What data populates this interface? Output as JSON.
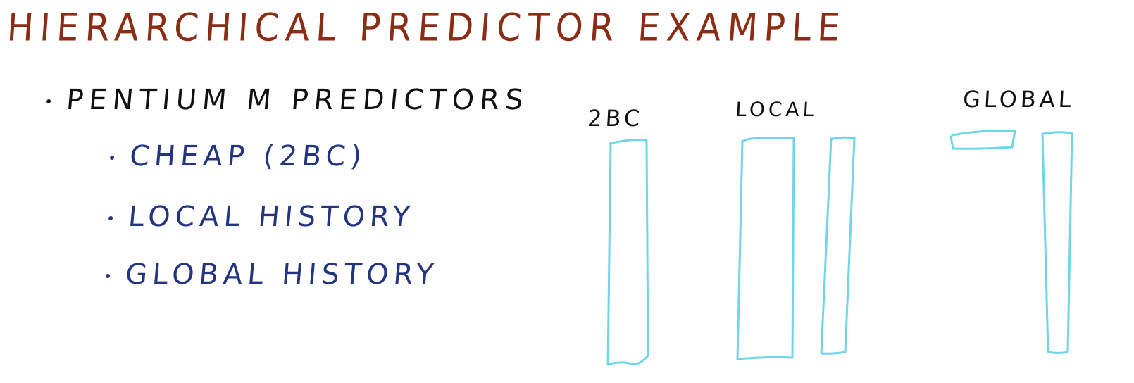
{
  "title": "Hierarchical Predictor Example",
  "bullets": {
    "main": "Pentium M Predictors",
    "items": [
      "Cheap (2BC)",
      "Local History",
      "Global History"
    ]
  },
  "diagram": {
    "labels": {
      "twobc": "2BC",
      "local": "Local",
      "global": "Global"
    }
  },
  "colors": {
    "title": "#8a2d14",
    "main_text": "#111111",
    "sub_text": "#243580",
    "table_outline": "#6fd6ea"
  }
}
